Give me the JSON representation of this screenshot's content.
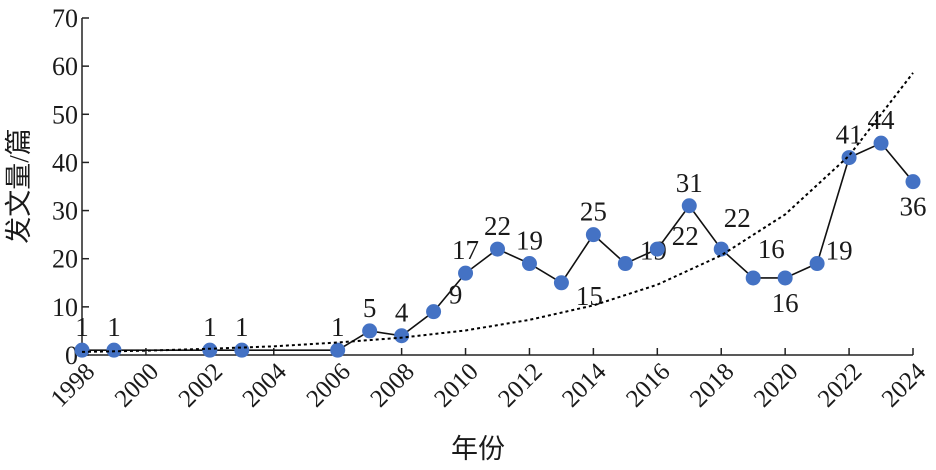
{
  "chart_data": {
    "type": "line",
    "x_label": "年份",
    "y_label": "发文量/篇",
    "x": [
      1998,
      1999,
      2002,
      2003,
      2006,
      2007,
      2008,
      2009,
      2010,
      2011,
      2012,
      2013,
      2014,
      2015,
      2016,
      2017,
      2018,
      2019,
      2020,
      2021,
      2022,
      2023,
      2024
    ],
    "series": [
      {
        "color": "#4472c4",
        "values": [
          1,
          1,
          1,
          1,
          1,
          5,
          4,
          9,
          17,
          22,
          19,
          15,
          25,
          19,
          22,
          31,
          22,
          16,
          16,
          19,
          41,
          44,
          36
        ]
      },
      {
        "color": "#000000",
        "dashed": true,
        "x": [
          1998,
          2000,
          2002,
          2004,
          2006,
          2008,
          2010,
          2012,
          2014,
          2016,
          2018,
          2020,
          2022,
          2024
        ],
        "values": [
          0.64,
          0.9,
          1.3,
          1.8,
          2.6,
          3.6,
          5.1,
          7.3,
          10.3,
          14.6,
          20.7,
          29.2,
          41.4,
          58.6
        ]
      }
    ],
    "xlim": [
      1998,
      2024
    ],
    "xticks": [
      1998,
      2000,
      2002,
      2004,
      2006,
      2008,
      2010,
      2012,
      2014,
      2016,
      2018,
      2020,
      2022,
      2024
    ],
    "ylim": [
      0,
      70
    ],
    "yticks": [
      0,
      10,
      20,
      30,
      40,
      50,
      60,
      70
    ]
  }
}
